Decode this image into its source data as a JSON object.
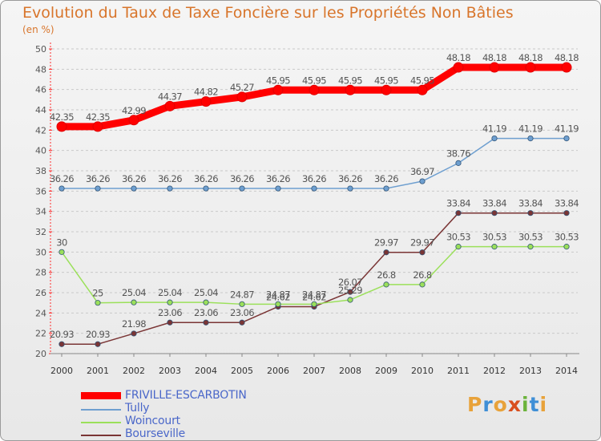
{
  "title": "Evolution du Taux de Taxe Foncière sur les Propriétés Non Bâties",
  "unit_label": "(en %)",
  "logo_text": "Proxiti",
  "logo_colors": [
    "#e8a23a",
    "#3f8fd6",
    "#e8a23a",
    "#d94f1e",
    "#6bb33b",
    "#3f8fd6",
    "#e8a23a"
  ],
  "chart_data": {
    "type": "line",
    "title": "Evolution du Taux de Taxe Foncière sur les Propriétés Non Bâties",
    "xlabel": "",
    "ylabel": "(en %)",
    "ylim": [
      20,
      50
    ],
    "yticks": [
      20,
      22,
      24,
      26,
      28,
      30,
      32,
      34,
      36,
      38,
      40,
      42,
      44,
      46,
      48,
      50
    ],
    "x": [
      "2000",
      "2001",
      "2002",
      "2003",
      "2004",
      "2005",
      "2006",
      "2007",
      "2008",
      "2009",
      "2010",
      "2011",
      "2012",
      "2013",
      "2014"
    ],
    "grid": "horizontal dashed",
    "series": [
      {
        "name": "FRIVILLE-ESCARBOTIN",
        "color": "#ff0000",
        "emphasis": "thick",
        "values": [
          42.35,
          42.35,
          42.99,
          44.37,
          44.82,
          45.27,
          45.95,
          45.95,
          45.95,
          45.95,
          45.95,
          48.18,
          48.18,
          48.18,
          48.18
        ],
        "labels": [
          "42.35",
          "42.35",
          "42.99",
          "44.37",
          "44.82",
          "45.27",
          "45.95",
          "45.95",
          "45.95",
          "45.95",
          "45.95",
          "48.18",
          "48.18",
          "48.18",
          "48.18"
        ]
      },
      {
        "name": "Tully",
        "color": "#6e9fd0",
        "values": [
          36.26,
          36.26,
          36.26,
          36.26,
          36.26,
          36.26,
          36.26,
          36.26,
          36.26,
          36.26,
          36.97,
          38.76,
          41.19,
          41.19,
          41.19
        ],
        "labels": [
          "36.26",
          "36.26",
          "36.26",
          "36.26",
          "36.26",
          "36.26",
          "36.26",
          "36.26",
          "36.26",
          "36.26",
          "36.97",
          "38.76",
          "41.19",
          "41.19",
          "41.19"
        ]
      },
      {
        "name": "Woincourt",
        "color": "#9be05a",
        "values": [
          30,
          25,
          25.04,
          25.04,
          25.04,
          24.87,
          24.87,
          24.87,
          25.29,
          26.8,
          26.8,
          30.53,
          30.53,
          30.53,
          30.53
        ],
        "labels": [
          "30",
          "25",
          "25.04",
          "25.04",
          "25.04",
          "24.87",
          "24.87",
          "24.87",
          "25.29",
          "26.8",
          "26.8",
          "30.53",
          "30.53",
          "30.53",
          "30.53"
        ]
      },
      {
        "name": "Bourseville",
        "color": "#7a3535",
        "values": [
          20.93,
          20.93,
          21.98,
          23.06,
          23.06,
          23.06,
          24.62,
          24.62,
          26.07,
          29.97,
          29.97,
          33.84,
          33.84,
          33.84,
          33.84
        ],
        "labels": [
          "20.93",
          "20.93",
          "21.98",
          "23.06",
          "23.06",
          "23.06",
          "24.62",
          "24.62",
          "26.07",
          "29.97",
          "29.97",
          "33.84",
          "33.84",
          "33.84",
          "33.84"
        ]
      }
    ]
  }
}
